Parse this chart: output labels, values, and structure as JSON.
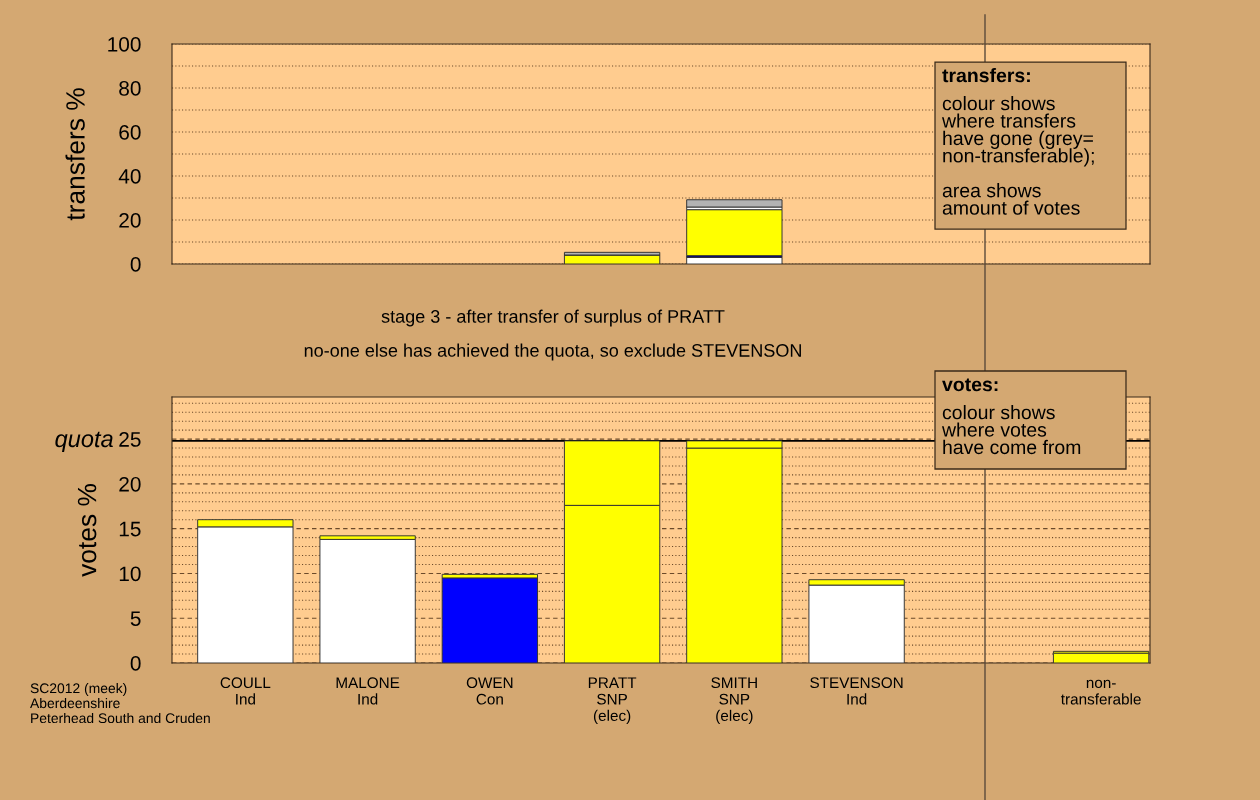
{
  "chart_data": [
    {
      "type": "bar",
      "ylabel": "transfers %",
      "stacked": true,
      "tick_labels": "y",
      "grid": "y",
      "categories": [
        null,
        null,
        null,
        null,
        null,
        null,
        null,
        null
      ],
      "ylim": [
        0,
        100
      ],
      "yticks": [
        0,
        20,
        40,
        60,
        80,
        100
      ],
      "series": [
        {
          "color": "#ffffff",
          "values": [
            null,
            null,
            null,
            0,
            3.0,
            null,
            null,
            null
          ]
        },
        {
          "color": "#00008b",
          "values": [
            null,
            null,
            null,
            0,
            0.8,
            null,
            null,
            null
          ]
        },
        {
          "color": "#ffff00",
          "values": [
            null,
            null,
            null,
            4.1,
            20.9,
            null,
            null,
            null
          ]
        },
        {
          "color": "#ffffff",
          "values": [
            null,
            null,
            null,
            0,
            1.2,
            null,
            null,
            null
          ]
        },
        {
          "color": "#b3b3b3",
          "values": [
            null,
            null,
            null,
            1.2,
            3.3,
            null,
            null,
            null
          ]
        }
      ],
      "annotations": [
        "transfers:",
        "colour shows\nwhere transfers\nhave gone (grey=\nnon-transferable);\n\narea shows\namount of votes"
      ]
    },
    {
      "type": "bar",
      "ylabel": "votes %",
      "stacked": true,
      "grid": "y",
      "categories": [
        "COULL\nInd",
        "MALONE\nInd",
        "OWEN\nCon",
        "PRATT\nSNP\n(elec)",
        "SMITH\nSNP\n(elec)",
        "STEVENSON\nInd",
        null,
        "non-\ntransferable"
      ],
      "ylim": [
        0,
        29.7
      ],
      "yticks": [
        0,
        5,
        10,
        15,
        20,
        25
      ],
      "series": [
        {
          "colors": [
            "#ffffff",
            "#ffffff",
            "#0000ff",
            "#ffff00",
            "#ffff00",
            "#ffffff",
            null,
            "#ffff00"
          ],
          "values": [
            15.2,
            13.8,
            9.5,
            17.6,
            24.0,
            8.7,
            null,
            1.1
          ]
        },
        {
          "color": "#ffff00",
          "values": [
            0.8,
            0.4,
            0.4,
            7.2,
            0.8,
            0.6,
            null,
            0.2
          ]
        }
      ],
      "ref_lines": [
        {
          "axis": "y",
          "value": 24.8,
          "label": "quota",
          "color": "#000000",
          "line_style": "solid"
        }
      ],
      "annotations": [
        "stage 3 - after transfer of surplus of PRATT",
        "no-one else has achieved the quota, so exclude STEVENSON",
        "votes:",
        "colour shows\nwhere votes\nhave come from",
        "SC2012 (meek)\nAberdeenshire\nPeterhead South and Cruden"
      ]
    }
  ]
}
